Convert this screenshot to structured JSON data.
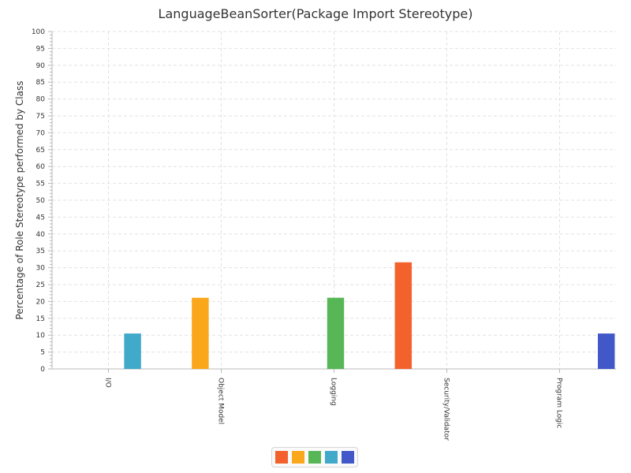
{
  "chart_data": {
    "type": "bar",
    "title": "LanguageBeanSorter(Package Import Stereotype)",
    "ylabel": "Percentage of Role Stereotype performed by Class",
    "xlabel": "",
    "ylim": [
      0,
      100
    ],
    "yticks": [
      0,
      5,
      10,
      15,
      20,
      25,
      30,
      35,
      40,
      45,
      50,
      55,
      60,
      65,
      70,
      75,
      80,
      85,
      90,
      95,
      100
    ],
    "categories": [
      "I/O",
      "Object Model",
      "Logging",
      "Security/Validator",
      "Program Logic"
    ],
    "series": [
      {
        "color": "#f3622d",
        "values": [
          0,
          0,
          0,
          31.6,
          0
        ]
      },
      {
        "color": "#fba71b",
        "values": [
          0,
          21.1,
          0,
          0,
          0
        ]
      },
      {
        "color": "#57b757",
        "values": [
          0,
          0,
          21.1,
          0,
          0
        ]
      },
      {
        "color": "#41a9c9",
        "values": [
          10.5,
          0,
          0,
          0,
          0
        ]
      },
      {
        "color": "#4258c9",
        "values": [
          0,
          0,
          0,
          0,
          10.5
        ]
      }
    ],
    "grid": true,
    "legend_position": "bottom"
  }
}
